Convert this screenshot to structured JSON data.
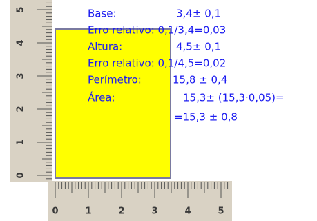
{
  "ruler": {
    "vertical_labels": [
      "0",
      "1",
      "2",
      "3",
      "4",
      "5"
    ],
    "horizontal_labels": [
      "0",
      "1",
      "2",
      "3",
      "4",
      "5"
    ]
  },
  "lines": [
    {
      "label": "Base:",
      "value": "3,4± 0,1"
    },
    {
      "label": "Erro relativo: 0,1/3,4=0,03"
    },
    {
      "label": "Altura:",
      "value": "4,5± 0,1"
    },
    {
      "label": "Erro relativo: 0,1/4,5=0,02"
    },
    {
      "label": "Perímetro:",
      "value": "15,8 ±  0,4"
    },
    {
      "label": "Área:",
      "value": "15,3± (15,3·0,05)="
    },
    {
      "value": "=15,3 ± 0,8"
    }
  ]
}
